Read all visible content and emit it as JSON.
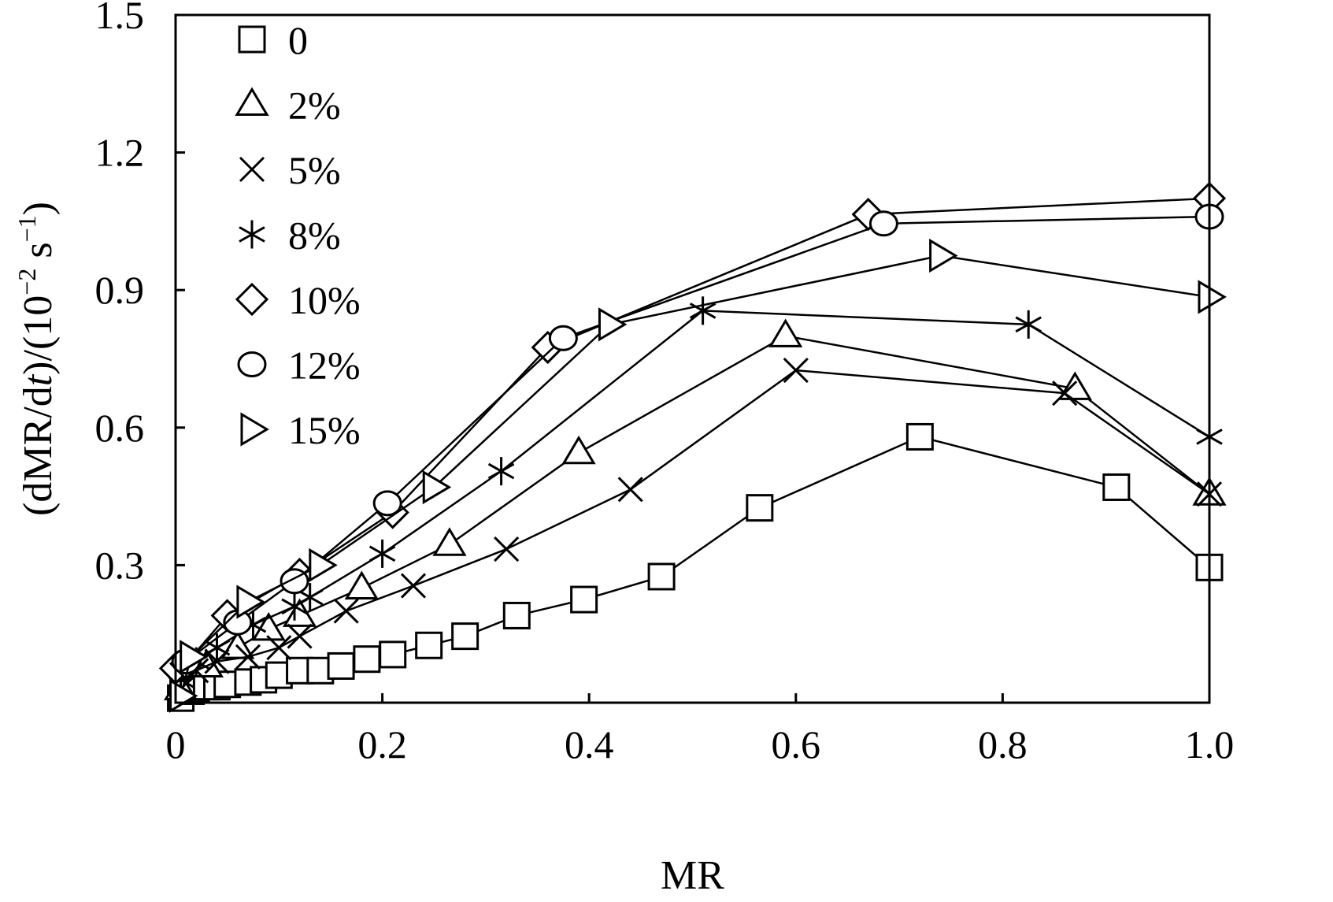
{
  "chart_data": {
    "type": "line",
    "xlabel": "MR",
    "ylabel_parts": [
      "(dMR/d",
      "t",
      ")/(10",
      "−2",
      " s",
      "−1",
      ")"
    ],
    "xlim": [
      0,
      1.0
    ],
    "ylim": [
      0,
      1.5
    ],
    "x_ticks": [
      0,
      0.2,
      0.4,
      0.6,
      0.8,
      1.0
    ],
    "x_tick_labels": [
      "0",
      "0.2",
      "0.4",
      "0.6",
      "0.8",
      "1.0"
    ],
    "y_ticks": [
      0.3,
      0.6,
      0.9,
      1.2,
      1.5
    ],
    "y_tick_labels": [
      "0.3",
      "0.6",
      "0.9",
      "1.2",
      "1.5"
    ],
    "grid": false,
    "legend_position": "top-left",
    "series": [
      {
        "name": "0",
        "marker": "square",
        "x": [
          0.005,
          0.015,
          0.02,
          0.03,
          0.04,
          0.05,
          0.07,
          0.085,
          0.1,
          0.12,
          0.14,
          0.16,
          0.185,
          0.21,
          0.245,
          0.28,
          0.33,
          0.395,
          0.47,
          0.565,
          0.72,
          0.91,
          1.0
        ],
        "y": [
          0.01,
          0.025,
          0.03,
          0.035,
          0.035,
          0.04,
          0.045,
          0.05,
          0.06,
          0.07,
          0.07,
          0.08,
          0.095,
          0.105,
          0.125,
          0.145,
          0.19,
          0.225,
          0.275,
          0.425,
          0.58,
          0.47,
          0.295
        ]
      },
      {
        "name": "2%",
        "marker": "triangle-up",
        "x": [
          0.005,
          0.03,
          0.06,
          0.09,
          0.12,
          0.18,
          0.265,
          0.39,
          0.59,
          0.87,
          1.0
        ],
        "y": [
          0.03,
          0.08,
          0.12,
          0.16,
          0.19,
          0.25,
          0.345,
          0.545,
          0.8,
          0.685,
          0.455
        ]
      },
      {
        "name": "5%",
        "marker": "x",
        "x": [
          0.005,
          0.02,
          0.04,
          0.07,
          0.1,
          0.12,
          0.165,
          0.23,
          0.32,
          0.44,
          0.6,
          0.86,
          1.0
        ],
        "y": [
          0.03,
          0.07,
          0.09,
          0.1,
          0.12,
          0.145,
          0.2,
          0.255,
          0.335,
          0.465,
          0.725,
          0.675,
          0.455
        ]
      },
      {
        "name": "8%",
        "marker": "asterisk",
        "x": [
          0.005,
          0.02,
          0.04,
          0.075,
          0.115,
          0.13,
          0.2,
          0.315,
          0.51,
          0.825,
          1.0
        ],
        "y": [
          0.05,
          0.09,
          0.12,
          0.17,
          0.21,
          0.23,
          0.325,
          0.505,
          0.855,
          0.825,
          0.58
        ]
      },
      {
        "name": "10%",
        "marker": "diamond",
        "x": [
          0.0,
          0.01,
          0.05,
          0.12,
          0.21,
          0.36,
          0.67,
          1.0
        ],
        "y": [
          0.075,
          0.085,
          0.19,
          0.28,
          0.415,
          0.775,
          1.065,
          1.1
        ]
      },
      {
        "name": "12%",
        "marker": "circle",
        "x": [
          0.01,
          0.06,
          0.115,
          0.205,
          0.375,
          0.685,
          1.0
        ],
        "y": [
          0.09,
          0.175,
          0.265,
          0.435,
          0.795,
          1.045,
          1.06
        ]
      },
      {
        "name": "15%",
        "marker": "triangle-right",
        "x": [
          0.005,
          0.015,
          0.07,
          0.14,
          0.25,
          0.42,
          0.74,
          1.0
        ],
        "y": [
          0.015,
          0.1,
          0.22,
          0.3,
          0.47,
          0.825,
          0.975,
          0.885
        ]
      }
    ]
  }
}
